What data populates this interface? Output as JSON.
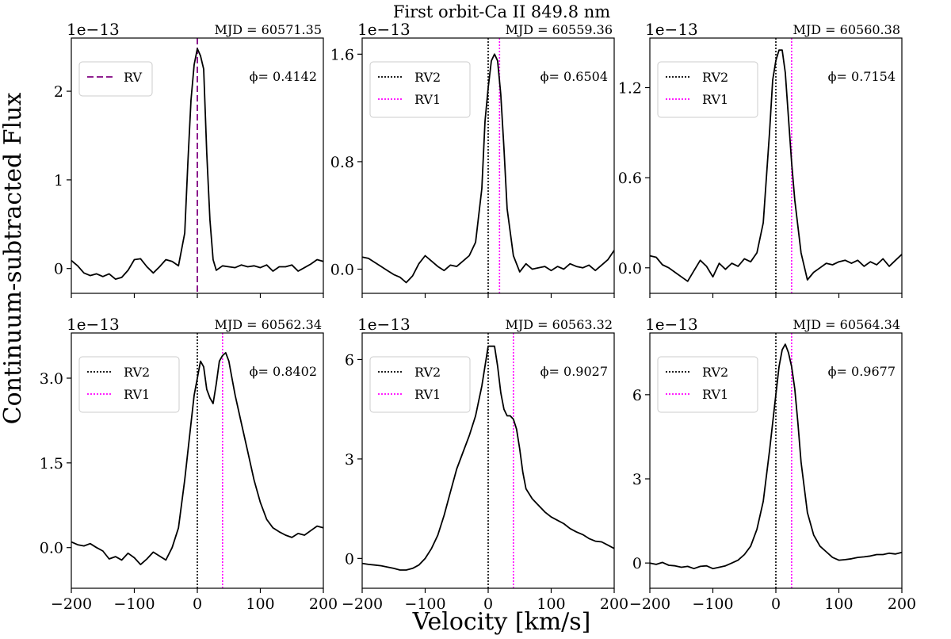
{
  "figure": {
    "title": "First orbit-Ca II 849.8 nm",
    "ylabel": "Continuum-subtracted Flux",
    "xlabel": "Velocity [km/s]"
  },
  "chart_data": [
    {
      "type": "line",
      "mjd_label": "MJD = 60571.35",
      "phase_label": "ϕ= 0.4142",
      "multiplier": "1e−13",
      "xlim": [
        -200,
        200
      ],
      "ylim": [
        -0.28,
        2.6
      ],
      "yticks": [
        0,
        1,
        2
      ],
      "ytick_labels": [
        "0",
        "1",
        "2"
      ],
      "xticks": [
        -200,
        -100,
        0,
        100,
        200
      ],
      "xtick_labels": [
        "−200",
        "−100",
        "0",
        "100",
        "200"
      ],
      "show_xticklabels": false,
      "legend": [
        {
          "label": "RV",
          "color": "#800080",
          "style": "dashed"
        }
      ],
      "vlines": [
        {
          "x": 0,
          "color": "#800080",
          "style": "dashed"
        }
      ],
      "series": {
        "x": [
          -200,
          -190,
          -180,
          -170,
          -160,
          -150,
          -140,
          -130,
          -120,
          -110,
          -100,
          -90,
          -80,
          -70,
          -60,
          -50,
          -40,
          -30,
          -20,
          -15,
          -10,
          -5,
          0,
          5,
          10,
          15,
          20,
          25,
          30,
          40,
          50,
          60,
          70,
          80,
          90,
          100,
          110,
          120,
          130,
          140,
          150,
          160,
          170,
          180,
          190,
          200
        ],
        "y": [
          0.09,
          0.03,
          -0.05,
          -0.08,
          -0.06,
          -0.09,
          -0.06,
          -0.12,
          -0.1,
          -0.02,
          0.1,
          0.11,
          0.02,
          -0.05,
          0.02,
          0.1,
          0.08,
          0.03,
          0.4,
          1.2,
          1.9,
          2.3,
          2.48,
          2.4,
          2.25,
          1.3,
          0.55,
          0.1,
          -0.02,
          0.03,
          0.02,
          0.01,
          0.04,
          0.02,
          0.03,
          0.01,
          0.04,
          -0.03,
          0.02,
          0.02,
          0.04,
          -0.03,
          0.01,
          0.05,
          0.1,
          0.08
        ]
      }
    },
    {
      "type": "line",
      "mjd_label": "MJD = 60559.36",
      "phase_label": "ϕ= 0.6504",
      "multiplier": "1e−13",
      "xlim": [
        -200,
        200
      ],
      "ylim": [
        -0.18,
        1.72
      ],
      "yticks": [
        0,
        0.8,
        1.6
      ],
      "ytick_labels": [
        "0.0",
        "0.8",
        "1.6"
      ],
      "xticks": [
        -200,
        -100,
        0,
        100,
        200
      ],
      "xtick_labels": [
        "−200",
        "−100",
        "0",
        "100",
        "200"
      ],
      "show_xticklabels": false,
      "legend": [
        {
          "label": "RV2",
          "color": "#000000",
          "style": "dotted"
        },
        {
          "label": "RV1",
          "color": "#ff00ff",
          "style": "dotted"
        }
      ],
      "vlines": [
        {
          "x": 0,
          "color": "#000000",
          "style": "dotted"
        },
        {
          "x": 18,
          "color": "#ff00ff",
          "style": "dotted"
        }
      ],
      "series": {
        "x": [
          -200,
          -190,
          -180,
          -170,
          -160,
          -150,
          -140,
          -130,
          -120,
          -110,
          -100,
          -90,
          -80,
          -70,
          -60,
          -50,
          -40,
          -30,
          -20,
          -10,
          -5,
          0,
          5,
          10,
          15,
          20,
          25,
          30,
          40,
          50,
          60,
          70,
          80,
          90,
          100,
          110,
          120,
          130,
          140,
          150,
          160,
          170,
          180,
          190,
          200
        ],
        "y": [
          0.09,
          0.08,
          0.05,
          0.02,
          -0.01,
          -0.04,
          -0.06,
          -0.1,
          -0.05,
          0.04,
          0.1,
          0.06,
          0.02,
          -0.01,
          0.03,
          0.02,
          0.06,
          0.1,
          0.2,
          0.6,
          1.1,
          1.35,
          1.55,
          1.6,
          1.55,
          1.3,
          0.9,
          0.45,
          0.1,
          -0.02,
          0.04,
          0.0,
          0.01,
          0.02,
          -0.01,
          0.02,
          0.0,
          0.04,
          0.02,
          0.01,
          0.03,
          -0.01,
          0.03,
          0.07,
          0.14
        ]
      }
    },
    {
      "type": "line",
      "mjd_label": "MJD = 60560.38",
      "phase_label": "ϕ= 0.7154",
      "multiplier": "1e−13",
      "xlim": [
        -200,
        200
      ],
      "ylim": [
        -0.17,
        1.53
      ],
      "yticks": [
        0,
        0.6,
        1.2
      ],
      "ytick_labels": [
        "0.0",
        "0.6",
        "1.2"
      ],
      "xticks": [
        -200,
        -100,
        0,
        100,
        200
      ],
      "xtick_labels": [
        "−200",
        "−100",
        "0",
        "100",
        "200"
      ],
      "show_xticklabels": false,
      "legend": [
        {
          "label": "RV2",
          "color": "#000000",
          "style": "dotted"
        },
        {
          "label": "RV1",
          "color": "#ff00ff",
          "style": "dotted"
        }
      ],
      "vlines": [
        {
          "x": 0,
          "color": "#000000",
          "style": "dotted"
        },
        {
          "x": 25,
          "color": "#ff00ff",
          "style": "dotted"
        }
      ],
      "series": {
        "x": [
          -200,
          -190,
          -180,
          -170,
          -160,
          -150,
          -140,
          -130,
          -120,
          -110,
          -100,
          -90,
          -80,
          -70,
          -60,
          -50,
          -40,
          -30,
          -20,
          -10,
          -5,
          0,
          5,
          10,
          15,
          20,
          25,
          30,
          40,
          50,
          60,
          70,
          80,
          90,
          100,
          110,
          120,
          130,
          140,
          150,
          160,
          170,
          180,
          190,
          200
        ],
        "y": [
          0.08,
          0.07,
          0.02,
          0.0,
          -0.03,
          -0.06,
          -0.09,
          -0.02,
          0.05,
          0.01,
          -0.06,
          0.03,
          -0.01,
          0.03,
          0.01,
          0.06,
          0.04,
          0.1,
          0.3,
          0.9,
          1.25,
          1.38,
          1.45,
          1.45,
          1.3,
          1.0,
          0.7,
          0.45,
          0.1,
          -0.08,
          -0.03,
          0.0,
          0.03,
          0.02,
          0.04,
          0.05,
          0.03,
          0.05,
          0.01,
          0.04,
          0.02,
          0.06,
          0.01,
          0.05,
          0.09
        ]
      }
    },
    {
      "type": "line",
      "mjd_label": "MJD = 60562.34",
      "phase_label": "ϕ= 0.8402",
      "multiplier": "1e−13",
      "xlim": [
        -200,
        200
      ],
      "ylim": [
        -0.72,
        3.8
      ],
      "yticks": [
        0,
        1.5,
        3.0
      ],
      "ytick_labels": [
        "0.0",
        "1.5",
        "3.0"
      ],
      "xticks": [
        -200,
        -100,
        0,
        100,
        200
      ],
      "xtick_labels": [
        "−200",
        "−100",
        "0",
        "100",
        "200"
      ],
      "show_xticklabels": true,
      "legend": [
        {
          "label": "RV2",
          "color": "#000000",
          "style": "dotted"
        },
        {
          "label": "RV1",
          "color": "#ff00ff",
          "style": "dotted"
        }
      ],
      "vlines": [
        {
          "x": 0,
          "color": "#000000",
          "style": "dotted"
        },
        {
          "x": 40,
          "color": "#ff00ff",
          "style": "dotted"
        }
      ],
      "series": {
        "x": [
          -200,
          -190,
          -180,
          -170,
          -160,
          -150,
          -140,
          -130,
          -120,
          -110,
          -100,
          -90,
          -80,
          -70,
          -60,
          -50,
          -40,
          -30,
          -20,
          -10,
          -5,
          0,
          5,
          10,
          15,
          20,
          25,
          30,
          35,
          40,
          45,
          50,
          55,
          60,
          70,
          80,
          90,
          100,
          110,
          120,
          130,
          140,
          150,
          160,
          170,
          180,
          190,
          200
        ],
        "y": [
          0.1,
          0.05,
          0.03,
          0.07,
          0.0,
          -0.06,
          -0.2,
          -0.16,
          -0.22,
          -0.1,
          -0.18,
          -0.3,
          -0.2,
          -0.08,
          -0.15,
          -0.22,
          0.0,
          0.35,
          1.2,
          2.2,
          2.7,
          3.0,
          3.3,
          3.2,
          2.8,
          2.65,
          2.55,
          2.9,
          3.3,
          3.4,
          3.45,
          3.3,
          3.0,
          2.7,
          2.2,
          1.7,
          1.2,
          0.8,
          0.5,
          0.35,
          0.28,
          0.22,
          0.18,
          0.25,
          0.22,
          0.3,
          0.38,
          0.35
        ]
      }
    },
    {
      "type": "line",
      "mjd_label": "MJD = 60563.32",
      "phase_label": "ϕ= 0.9027",
      "multiplier": "1e−13",
      "xlim": [
        -200,
        200
      ],
      "ylim": [
        -0.9,
        6.8
      ],
      "yticks": [
        0,
        3,
        6
      ],
      "ytick_labels": [
        "0",
        "3",
        "6"
      ],
      "xticks": [
        -200,
        -100,
        0,
        100,
        200
      ],
      "xtick_labels": [
        "−200",
        "−100",
        "0",
        "100",
        "200"
      ],
      "show_xticklabels": true,
      "legend": [
        {
          "label": "RV2",
          "color": "#000000",
          "style": "dotted"
        },
        {
          "label": "RV1",
          "color": "#ff00ff",
          "style": "dotted"
        }
      ],
      "vlines": [
        {
          "x": 0,
          "color": "#000000",
          "style": "dotted"
        },
        {
          "x": 40,
          "color": "#ff00ff",
          "style": "dotted"
        }
      ],
      "series": {
        "x": [
          -200,
          -190,
          -180,
          -170,
          -160,
          -150,
          -140,
          -130,
          -120,
          -110,
          -100,
          -90,
          -80,
          -70,
          -60,
          -50,
          -40,
          -30,
          -20,
          -10,
          0,
          10,
          15,
          20,
          25,
          30,
          35,
          40,
          45,
          50,
          55,
          60,
          70,
          80,
          90,
          100,
          110,
          120,
          130,
          140,
          150,
          160,
          170,
          180,
          190,
          200
        ],
        "y": [
          -0.15,
          -0.18,
          -0.2,
          -0.22,
          -0.26,
          -0.3,
          -0.35,
          -0.35,
          -0.3,
          -0.2,
          0.0,
          0.3,
          0.7,
          1.3,
          2.0,
          2.7,
          3.2,
          3.7,
          4.3,
          5.2,
          6.4,
          6.4,
          5.8,
          5.0,
          4.5,
          4.3,
          4.3,
          4.2,
          3.9,
          3.3,
          2.6,
          2.1,
          1.8,
          1.6,
          1.4,
          1.25,
          1.15,
          1.05,
          0.9,
          0.8,
          0.72,
          0.6,
          0.52,
          0.5,
          0.4,
          0.3
        ]
      }
    },
    {
      "type": "line",
      "mjd_label": "MJD = 60564.34",
      "phase_label": "ϕ= 0.9677",
      "multiplier": "1e−13",
      "xlim": [
        -200,
        200
      ],
      "ylim": [
        -0.9,
        8.2
      ],
      "yticks": [
        0,
        3,
        6
      ],
      "ytick_labels": [
        "0",
        "3",
        "6"
      ],
      "xticks": [
        -200,
        -100,
        0,
        100,
        200
      ],
      "xtick_labels": [
        "−200",
        "−100",
        "0",
        "100",
        "200"
      ],
      "show_xticklabels": true,
      "legend": [
        {
          "label": "RV2",
          "color": "#000000",
          "style": "dotted"
        },
        {
          "label": "RV1",
          "color": "#ff00ff",
          "style": "dotted"
        }
      ],
      "vlines": [
        {
          "x": 0,
          "color": "#000000",
          "style": "dotted"
        },
        {
          "x": 25,
          "color": "#ff00ff",
          "style": "dotted"
        }
      ],
      "series": {
        "x": [
          -200,
          -190,
          -180,
          -170,
          -160,
          -150,
          -140,
          -130,
          -120,
          -110,
          -100,
          -90,
          -80,
          -70,
          -60,
          -50,
          -40,
          -30,
          -20,
          -10,
          0,
          5,
          10,
          15,
          20,
          25,
          30,
          35,
          40,
          50,
          60,
          70,
          80,
          90,
          100,
          110,
          120,
          130,
          140,
          150,
          160,
          170,
          180,
          190,
          200
        ],
        "y": [
          0.0,
          -0.05,
          0.02,
          -0.08,
          -0.1,
          -0.15,
          -0.12,
          -0.2,
          -0.12,
          -0.1,
          -0.2,
          -0.15,
          -0.1,
          0.0,
          0.1,
          0.3,
          0.6,
          1.2,
          2.2,
          4.0,
          6.0,
          7.0,
          7.6,
          7.8,
          7.5,
          7.0,
          6.2,
          5.0,
          3.6,
          1.8,
          1.0,
          0.6,
          0.4,
          0.2,
          0.1,
          0.12,
          0.15,
          0.2,
          0.22,
          0.25,
          0.3,
          0.3,
          0.35,
          0.32,
          0.38
        ]
      }
    }
  ]
}
